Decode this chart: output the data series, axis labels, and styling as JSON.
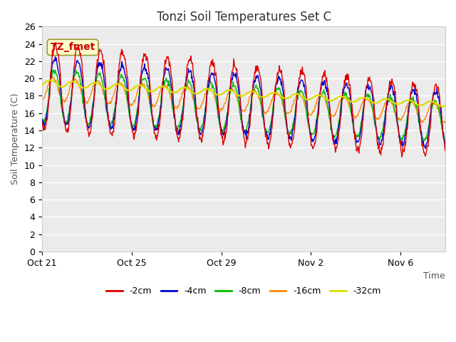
{
  "title": "Tonzi Soil Temperatures Set C",
  "xlabel": "Time",
  "ylabel": "Soil Temperature (C)",
  "ylim": [
    0,
    26
  ],
  "yticks": [
    0,
    2,
    4,
    6,
    8,
    10,
    12,
    14,
    16,
    18,
    20,
    22,
    24,
    26
  ],
  "series_labels": [
    "-2cm",
    "-4cm",
    "-8cm",
    "-16cm",
    "-32cm"
  ],
  "series_colors": [
    "#dd0000",
    "#0000cc",
    "#00bb00",
    "#ff8800",
    "#dddd00"
  ],
  "series_linewidths": [
    1.0,
    1.0,
    1.0,
    1.0,
    1.5
  ],
  "annotation_label": "TZ_fmet",
  "bg_color": "#ffffff",
  "plot_bg_color": "#ebebeb",
  "grid_color": "#ffffff",
  "x_tick_labels": [
    "Oct 21",
    "Oct 25",
    "Oct 29",
    "Nov 2",
    "Nov 6"
  ],
  "x_tick_positions": [
    0,
    4,
    8,
    12,
    16
  ],
  "n_days": 18,
  "pts_per_day": 48
}
